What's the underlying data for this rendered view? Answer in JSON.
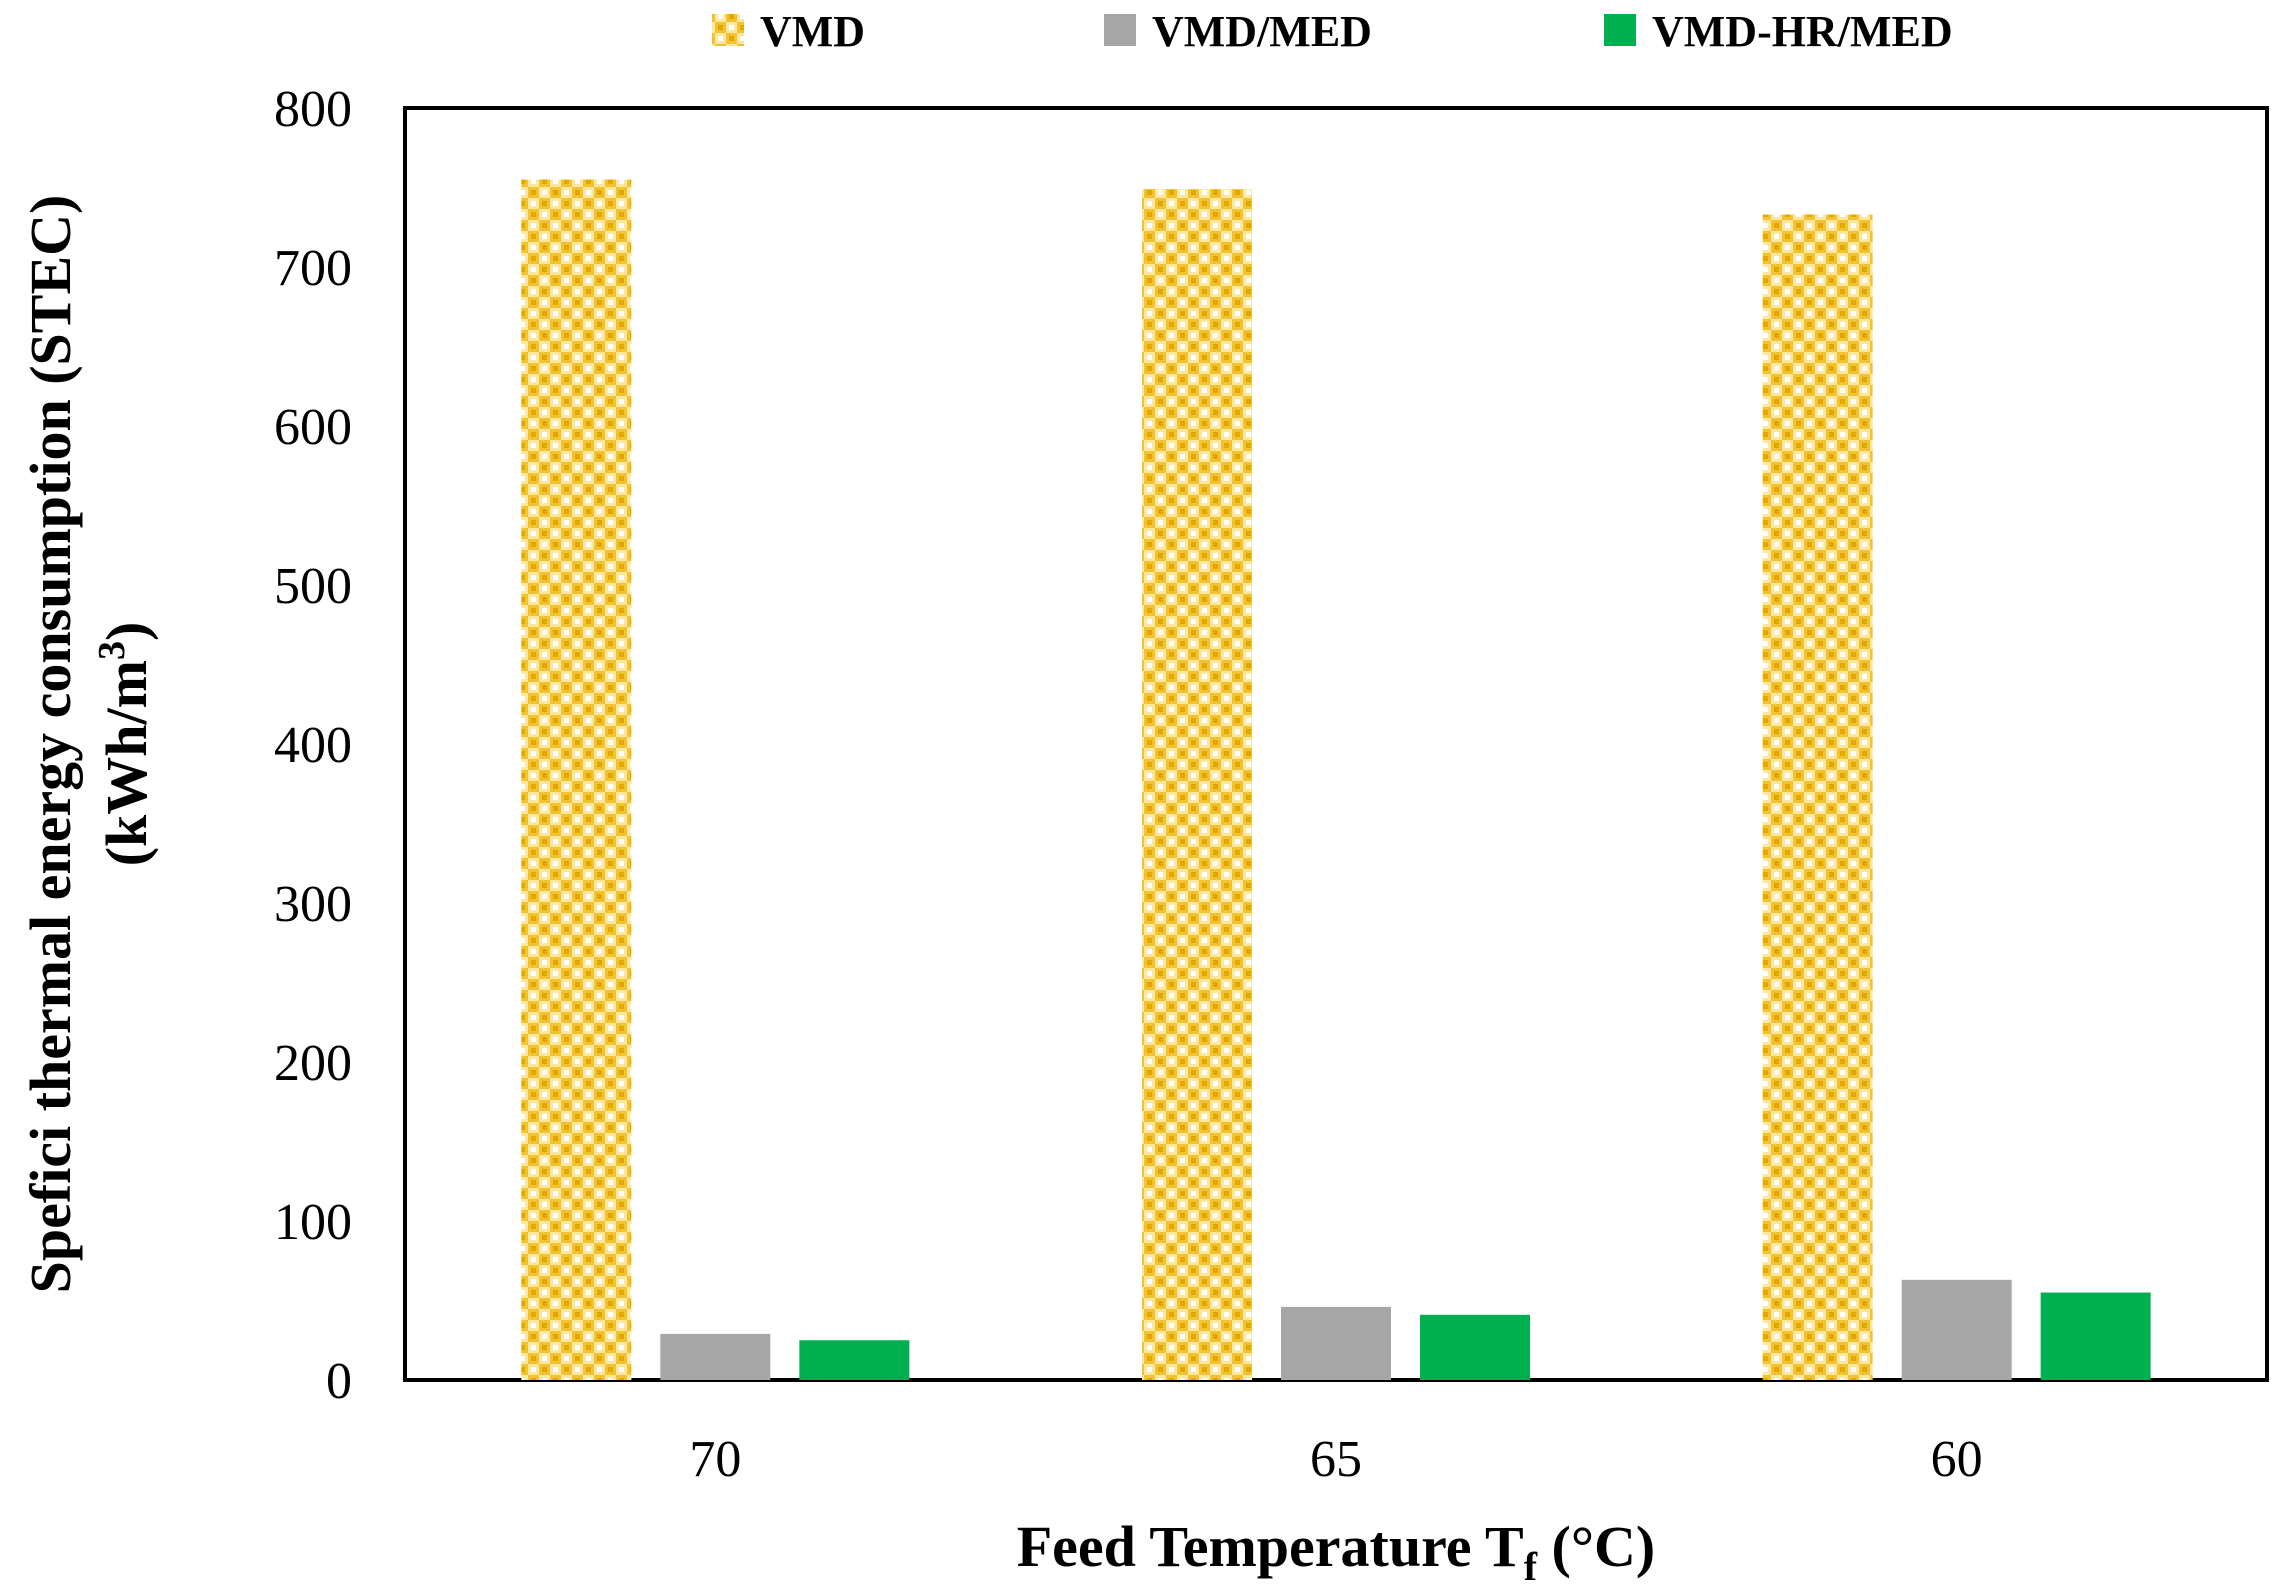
{
  "chart_data": {
    "type": "bar",
    "title": "",
    "xlabel_main": "Feed Temperature T",
    "xlabel_sub": "f",
    "xlabel_unit": " (°C)",
    "ylabel_line1": "Spefici thermal energy consumption (STEC)",
    "ylabel_line2_main": "(kWh/m",
    "ylabel_line2_sup": "3",
    "ylabel_line2_end": ")",
    "categories": [
      "70",
      "65",
      "60"
    ],
    "ylim": [
      0,
      800
    ],
    "yticks": [
      0,
      100,
      200,
      300,
      400,
      500,
      600,
      700,
      800
    ],
    "ytick_labels": [
      "0",
      "100",
      "200",
      "300",
      "400",
      "500",
      "600",
      "700",
      "800"
    ],
    "legend_position": "top-center",
    "series": [
      {
        "name": "VMD",
        "values": [
          755,
          749,
          733
        ],
        "color": "#F5C518",
        "pattern": "checkered"
      },
      {
        "name": "VMD/MED",
        "values": [
          29,
          46,
          63
        ],
        "color": "#A6A6A6",
        "pattern": "solid"
      },
      {
        "name": "VMD-HR/MED",
        "values": [
          25,
          41,
          55
        ],
        "color": "#00B050",
        "pattern": "solid"
      }
    ],
    "grid": false
  }
}
